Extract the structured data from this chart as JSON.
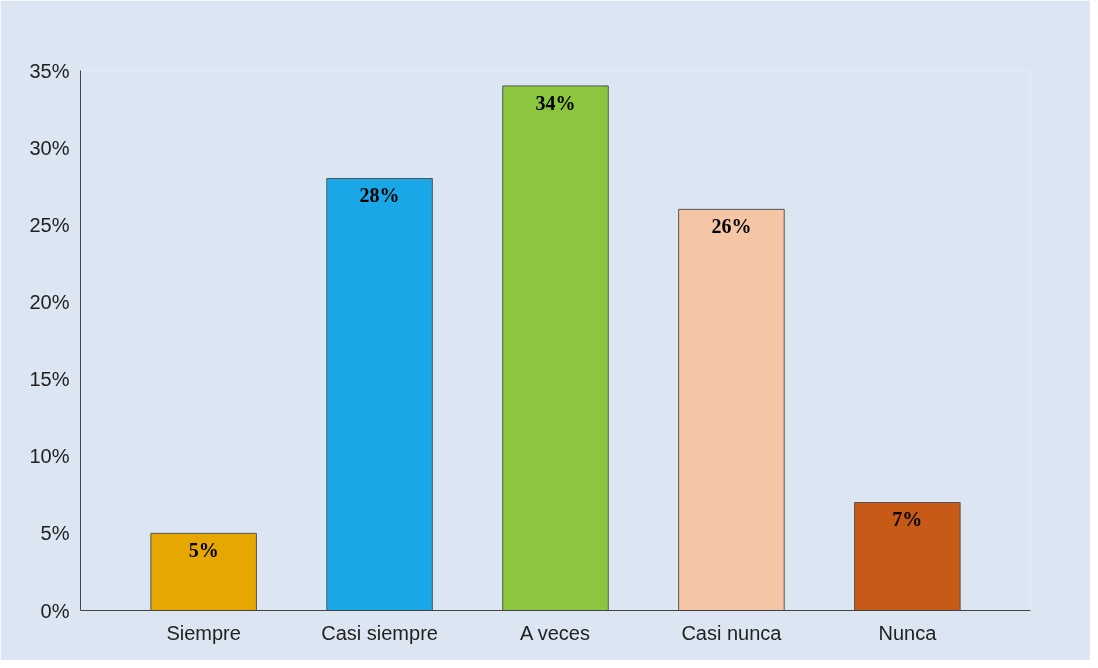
{
  "chart_data": {
    "type": "bar",
    "categories": [
      "Siempre",
      "Casi siempre",
      "A veces",
      "Casi nunca",
      "Nunca"
    ],
    "values": [
      5,
      28,
      34,
      26,
      7
    ],
    "value_labels": [
      "5%",
      "28%",
      "34%",
      "26%",
      "7%"
    ],
    "colors": [
      "#e6a800",
      "#1aa7e8",
      "#8cc63f",
      "#f5c6a5",
      "#c85a17"
    ],
    "ylim": [
      0,
      35
    ],
    "yticks": [
      {
        "value": 0,
        "label": "0%"
      },
      {
        "value": 5,
        "label": "5%"
      },
      {
        "value": 10,
        "label": "10%"
      },
      {
        "value": 15,
        "label": "15%"
      },
      {
        "value": 20,
        "label": "20%"
      },
      {
        "value": 25,
        "label": "25%"
      },
      {
        "value": 30,
        "label": "30%"
      },
      {
        "value": 35,
        "label": "35%"
      }
    ],
    "grid": false
  }
}
